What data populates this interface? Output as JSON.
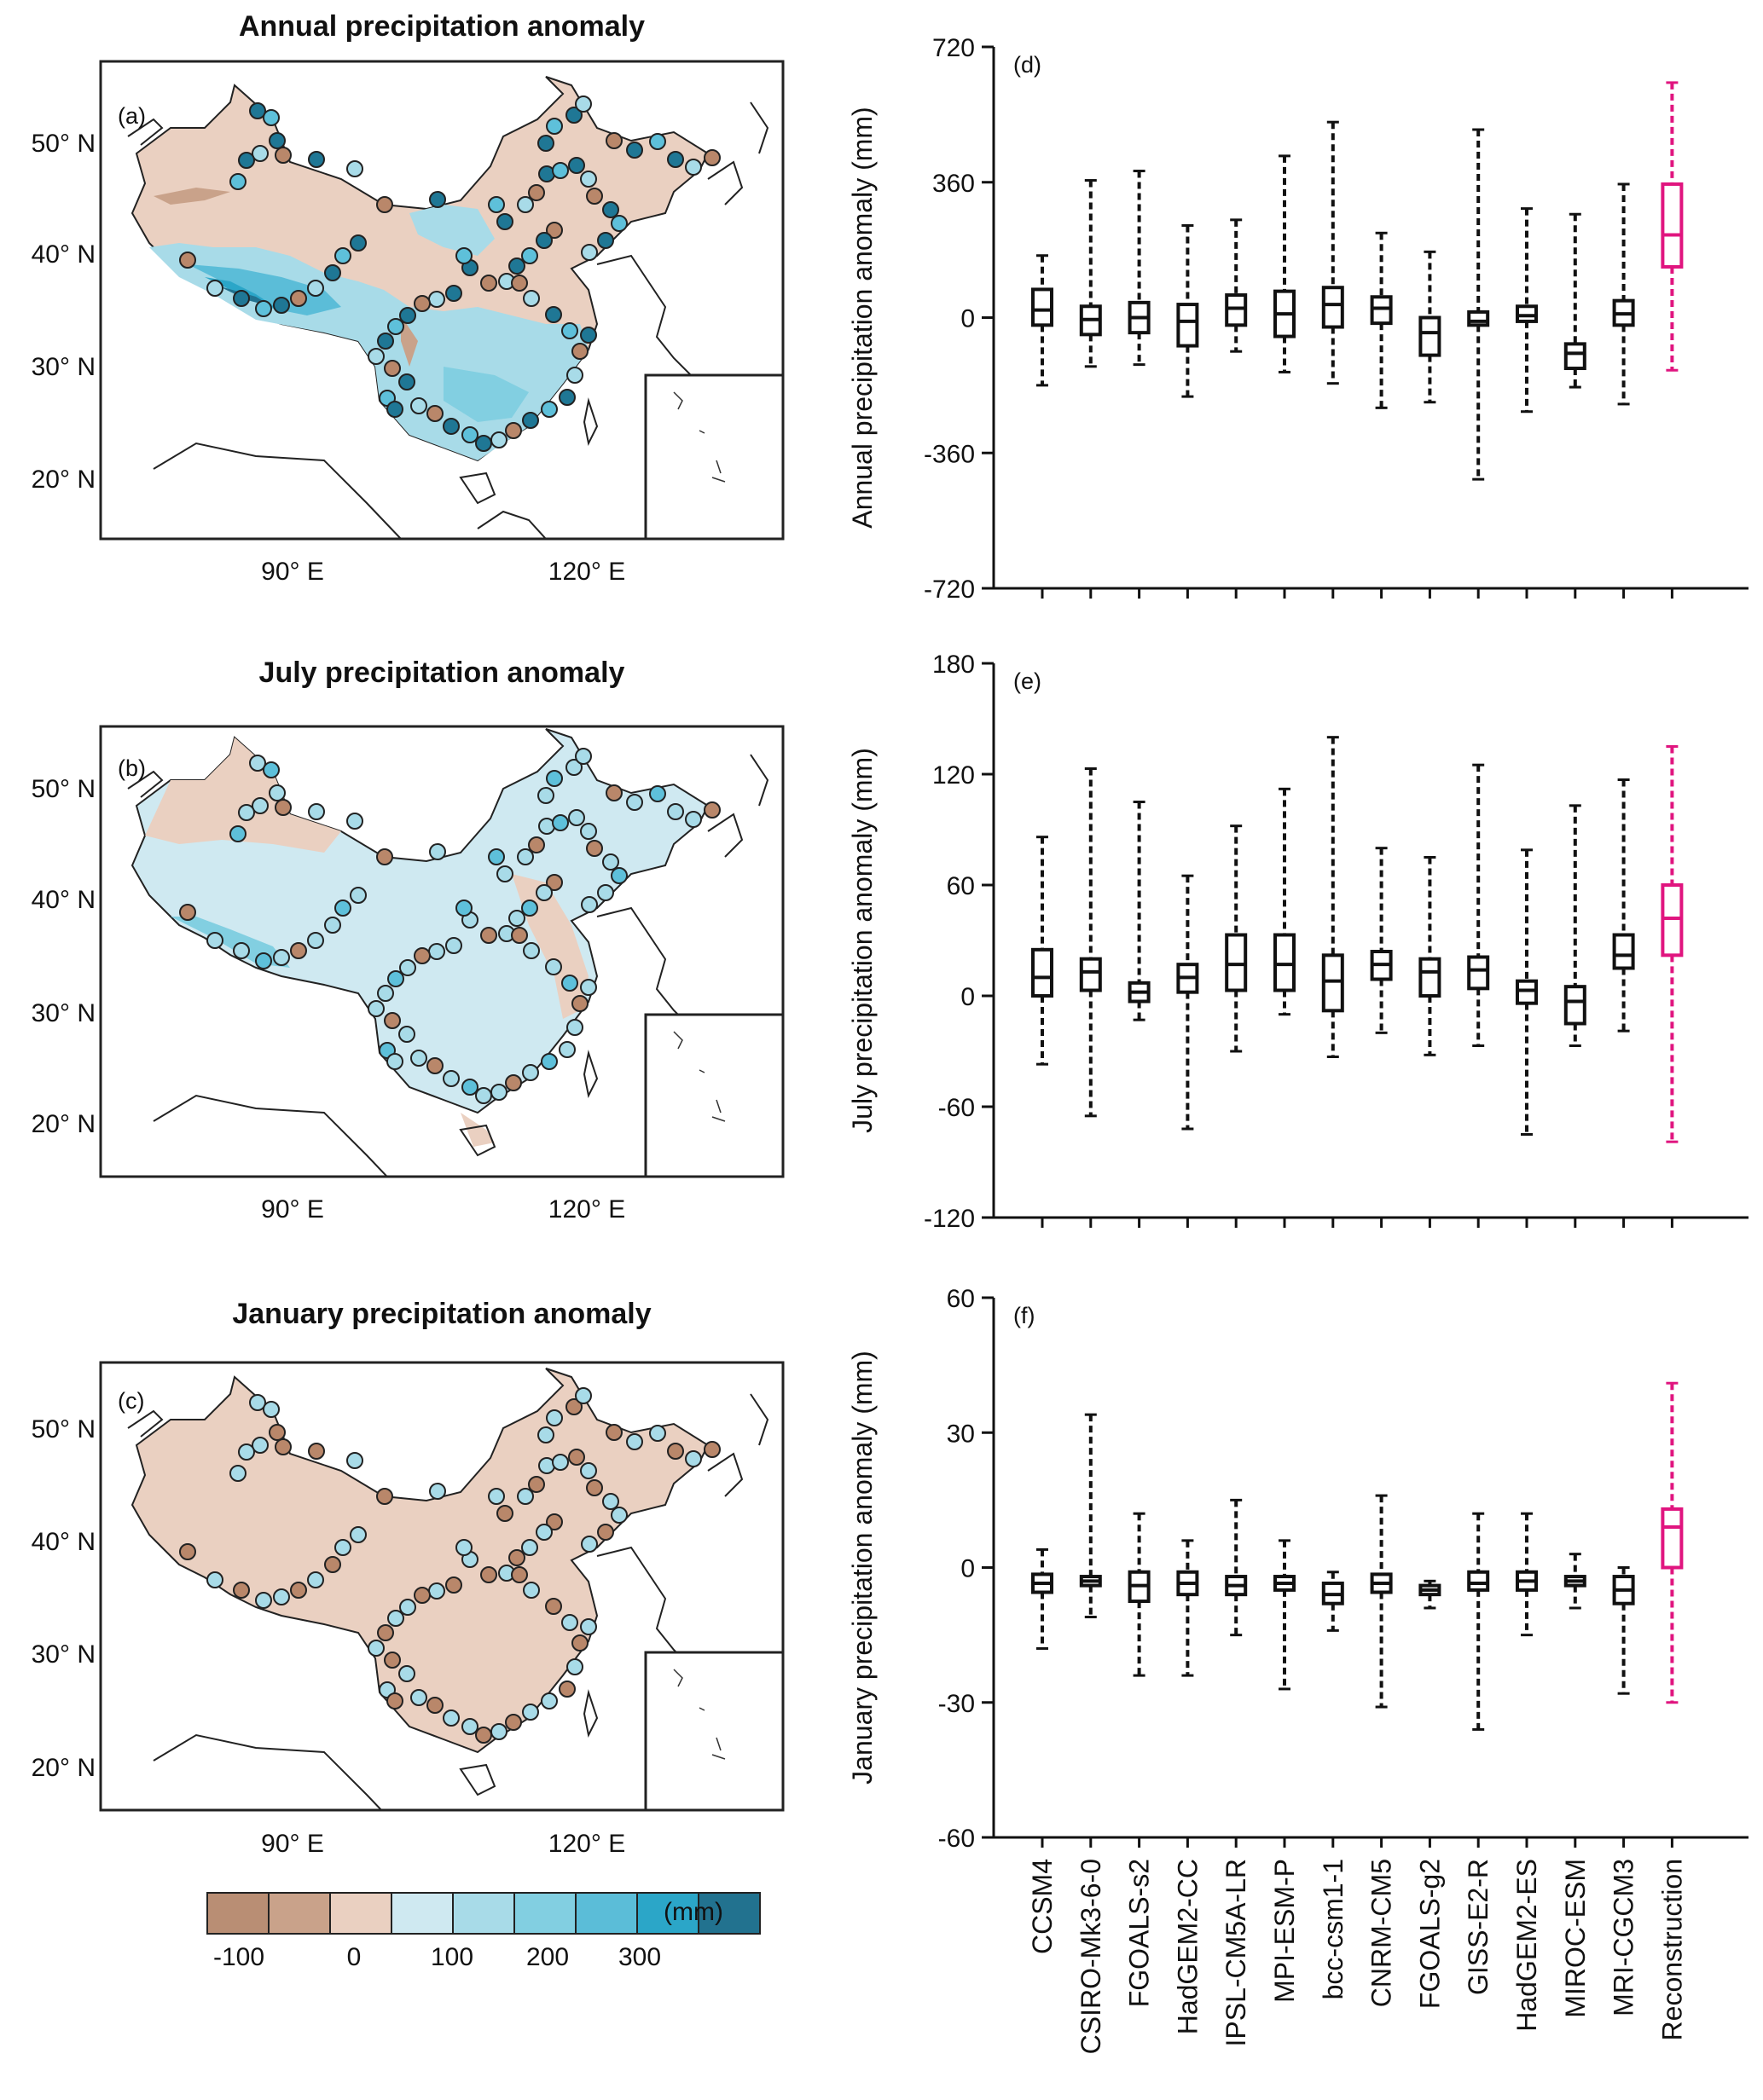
{
  "maps": [
    {
      "title": "Annual precipitation anomaly",
      "label": "(a)",
      "lat_labels": [
        "50",
        "40",
        "30",
        "20"
      ],
      "lat_suffix": "° N",
      "lon_labels": [
        "90",
        "120"
      ],
      "lon_suffix": "° E"
    },
    {
      "title": "July precipitation anomaly",
      "label": "(b)",
      "lat_labels": [
        "50",
        "40",
        "30",
        "20"
      ],
      "lat_suffix": "° N",
      "lon_labels": [
        "90",
        "120"
      ],
      "lon_suffix": "° E"
    },
    {
      "title": "January precipitation anomaly",
      "label": "(c)",
      "lat_labels": [
        "50",
        "40",
        "30",
        "20"
      ],
      "lat_suffix": "° N",
      "lon_labels": [
        "90",
        "120"
      ],
      "lon_suffix": "° E"
    }
  ],
  "colorbar": {
    "colors": [
      "#b98e74",
      "#c9a28a",
      "#ead0c1",
      "#cfe9f1",
      "#a8dbe8",
      "#82cfe1",
      "#5bbdd8",
      "#2ba6c8",
      "#22728f"
    ],
    "tick_labels": [
      "-100",
      "0",
      "100",
      "200",
      "300"
    ],
    "unit": "(mm)"
  },
  "station_colors": {
    "brown": "#b9876a",
    "light": "#a8dbe8",
    "mid": "#5ec0da",
    "dark": "#1f7795"
  },
  "chart_data": [
    {
      "type": "box",
      "label": "(d)",
      "ylabel": "Annual precipitation anomaly (mm)",
      "ylim": [
        -720,
        720
      ],
      "yticks": [
        720,
        360,
        0,
        -360,
        -720
      ],
      "models": [
        "CCSM4",
        "CSIRO-Mk3-6-0",
        "FGOALS-s2",
        "HadGEM2-CC",
        "IPSL-CM5A-LR",
        "MPI-ESM-P",
        "bcc-csm1-1",
        "CNRM-CM5",
        "FGOALS-g2",
        "GISS-E2-R",
        "HadGEM2-ES",
        "MIROC-ESM",
        "MRI-CGCM3",
        "Reconstruction"
      ],
      "highlight": "Reconstruction",
      "highlight_color": "#e0157f",
      "boxes": [
        {
          "min": -180,
          "q1": -20,
          "median": 20,
          "q3": 75,
          "max": 165
        },
        {
          "min": -130,
          "q1": -45,
          "median": -5,
          "q3": 30,
          "max": 365
        },
        {
          "min": -125,
          "q1": -40,
          "median": 0,
          "q3": 40,
          "max": 390
        },
        {
          "min": -210,
          "q1": -75,
          "median": -10,
          "q3": 35,
          "max": 245
        },
        {
          "min": -90,
          "q1": -20,
          "median": 25,
          "q3": 60,
          "max": 260
        },
        {
          "min": -145,
          "q1": -50,
          "median": 10,
          "q3": 70,
          "max": 430
        },
        {
          "min": -175,
          "q1": -25,
          "median": 35,
          "q3": 80,
          "max": 520
        },
        {
          "min": -240,
          "q1": -15,
          "median": 25,
          "q3": 55,
          "max": 225
        },
        {
          "min": -225,
          "q1": -100,
          "median": -40,
          "q3": 0,
          "max": 175
        },
        {
          "min": -430,
          "q1": -20,
          "median": -10,
          "q3": 15,
          "max": 500
        },
        {
          "min": -250,
          "q1": -10,
          "median": 5,
          "q3": 30,
          "max": 290
        },
        {
          "min": -185,
          "q1": -135,
          "median": -95,
          "q3": -70,
          "max": 275
        },
        {
          "min": -230,
          "q1": -20,
          "median": 10,
          "q3": 45,
          "max": 355
        },
        {
          "min": -140,
          "q1": 135,
          "median": 220,
          "q3": 355,
          "max": 625
        }
      ]
    },
    {
      "type": "box",
      "label": "(e)",
      "ylabel": "July precipitation anomaly (mm)",
      "ylim": [
        -120,
        180
      ],
      "yticks": [
        180,
        120,
        60,
        0,
        -60,
        -120
      ],
      "models": [
        "CCSM4",
        "CSIRO-Mk3-6-0",
        "FGOALS-s2",
        "HadGEM2-CC",
        "IPSL-CM5A-LR",
        "MPI-ESM-P",
        "bcc-csm1-1",
        "CNRM-CM5",
        "FGOALS-g2",
        "GISS-E2-R",
        "HadGEM2-ES",
        "MIROC-ESM",
        "MRI-CGCM3",
        "Reconstruction"
      ],
      "highlight": "Reconstruction",
      "highlight_color": "#e0157f",
      "boxes": [
        {
          "min": -37,
          "q1": 0,
          "median": 10,
          "q3": 25,
          "max": 86
        },
        {
          "min": -65,
          "q1": 3,
          "median": 13,
          "q3": 20,
          "max": 123
        },
        {
          "min": -13,
          "q1": -3,
          "median": 2,
          "q3": 7,
          "max": 105
        },
        {
          "min": -72,
          "q1": 2,
          "median": 10,
          "q3": 17,
          "max": 65
        },
        {
          "min": -30,
          "q1": 3,
          "median": 17,
          "q3": 33,
          "max": 92
        },
        {
          "min": -10,
          "q1": 3,
          "median": 17,
          "q3": 33,
          "max": 112
        },
        {
          "min": -33,
          "q1": -8,
          "median": 8,
          "q3": 22,
          "max": 140
        },
        {
          "min": -20,
          "q1": 9,
          "median": 17,
          "q3": 24,
          "max": 80
        },
        {
          "min": -32,
          "q1": 0,
          "median": 13,
          "q3": 20,
          "max": 75
        },
        {
          "min": -27,
          "q1": 4,
          "median": 14,
          "q3": 21,
          "max": 125
        },
        {
          "min": -75,
          "q1": -4,
          "median": 3,
          "q3": 8,
          "max": 79
        },
        {
          "min": -27,
          "q1": -15,
          "median": -3,
          "q3": 5,
          "max": 103
        },
        {
          "min": -19,
          "q1": 15,
          "median": 22,
          "q3": 33,
          "max": 117
        },
        {
          "min": -79,
          "q1": 22,
          "median": 42,
          "q3": 60,
          "max": 135
        }
      ]
    },
    {
      "type": "box",
      "label": "(f)",
      "ylabel": "January precipitation anomaly (mm)",
      "ylim": [
        -60,
        60
      ],
      "yticks": [
        60,
        30,
        0,
        -30,
        -60
      ],
      "models": [
        "CCSM4",
        "CSIRO-Mk3-6-0",
        "FGOALS-s2",
        "HadGEM2-CC",
        "IPSL-CM5A-LR",
        "MPI-ESM-P",
        "bcc-csm1-1",
        "CNRM-CM5",
        "FGOALS-g2",
        "GISS-E2-R",
        "HadGEM2-ES",
        "MIROC-ESM",
        "MRI-CGCM3",
        "Reconstruction"
      ],
      "highlight": "Reconstruction",
      "highlight_color": "#e0157f",
      "boxes": [
        {
          "min": -18,
          "q1": -5.5,
          "median": -3.5,
          "q3": -1.5,
          "max": 4
        },
        {
          "min": -11,
          "q1": -4,
          "median": -3,
          "q3": -2,
          "max": 34
        },
        {
          "min": -24,
          "q1": -7.5,
          "median": -4,
          "q3": -1,
          "max": 12
        },
        {
          "min": -24,
          "q1": -6,
          "median": -3.5,
          "q3": -1,
          "max": 6
        },
        {
          "min": -15,
          "q1": -6,
          "median": -4,
          "q3": -2,
          "max": 15
        },
        {
          "min": -27,
          "q1": -5,
          "median": -3.5,
          "q3": -2,
          "max": 6
        },
        {
          "min": -14,
          "q1": -8,
          "median": -6,
          "q3": -3.5,
          "max": -1
        },
        {
          "min": -31,
          "q1": -5.5,
          "median": -3.5,
          "q3": -1.5,
          "max": 16
        },
        {
          "min": -9,
          "q1": -6,
          "median": -5,
          "q3": -4,
          "max": -3
        },
        {
          "min": -36,
          "q1": -5,
          "median": -3.5,
          "q3": -1,
          "max": 12
        },
        {
          "min": -15,
          "q1": -5,
          "median": -3,
          "q3": -1,
          "max": 12
        },
        {
          "min": -9,
          "q1": -4,
          "median": -3,
          "q3": -2,
          "max": 3
        },
        {
          "min": -28,
          "q1": -8,
          "median": -5,
          "q3": -2,
          "max": 0
        },
        {
          "min": -30,
          "q1": 0,
          "median": 9,
          "q3": 13,
          "max": 41
        }
      ]
    }
  ]
}
